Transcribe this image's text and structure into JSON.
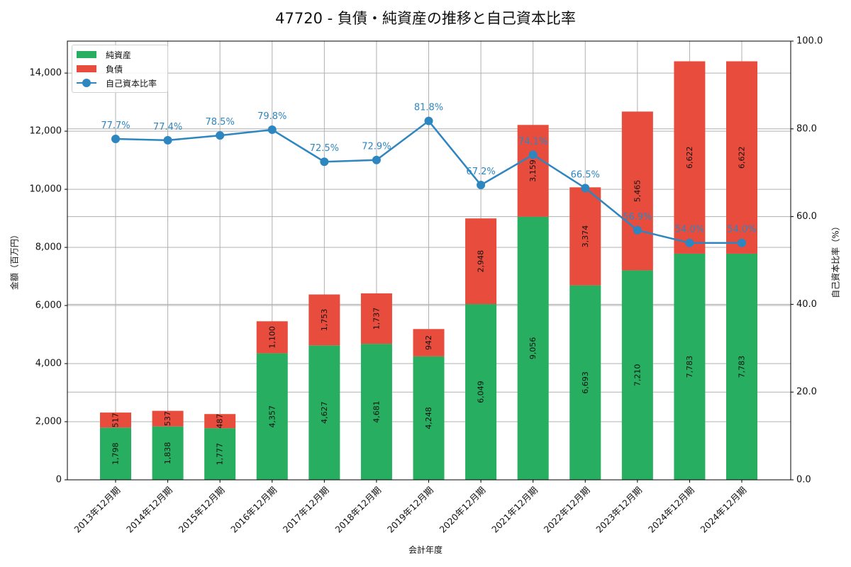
{
  "title": "47720 - 負債・純資産の推移と自己資本比率",
  "axes": {
    "xlabel": "会計年度",
    "ylabel_left": "金額（百万円）",
    "ylabel_right": "自己資本比率（%）",
    "left_ticks": [
      "0",
      "2,000",
      "4,000",
      "6,000",
      "8,000",
      "10,000",
      "12,000",
      "14,000"
    ],
    "right_ticks": [
      "0.0",
      "20.0",
      "40.0",
      "60.0",
      "80.0",
      "100.0"
    ]
  },
  "legend": {
    "items": [
      {
        "label": "純資産",
        "color": "#27ae60",
        "kind": "bar"
      },
      {
        "label": "負債",
        "color": "#e74c3c",
        "kind": "bar"
      },
      {
        "label": "自己資本比率",
        "color": "#2e86c1",
        "kind": "line-marker"
      }
    ]
  },
  "colors": {
    "net_assets": "#27ae60",
    "liabilities": "#e74c3c",
    "equity_ratio": "#2e86c1",
    "grid": "#b0b0b0"
  },
  "chart_data": {
    "type": "bar",
    "stacked": true,
    "title": "47720 - 負債・純資産の推移と自己資本比率",
    "xlabel": "会計年度",
    "ylabel": "金額（百万円）",
    "ylabel_right": "自己資本比率（%）",
    "ylim": [
      0,
      15100
    ],
    "ylim_right": [
      0,
      100
    ],
    "grid": true,
    "legend_position": "upper left",
    "categories": [
      "2013年12月期",
      "2014年12月期",
      "2015年12月期",
      "2016年12月期",
      "2017年12月期",
      "2018年12月期",
      "2019年12月期",
      "2020年12月期",
      "2021年12月期",
      "2022年12月期",
      "2023年12月期",
      "2024年12月期",
      "2024年12月期"
    ],
    "series": [
      {
        "name": "純資産",
        "type": "bar",
        "axis": "left",
        "values": [
          1798,
          1838,
          1777,
          4357,
          4627,
          4681,
          4248,
          6049,
          9056,
          6693,
          7210,
          7783,
          7783
        ],
        "labels": [
          "1,798",
          "1,838",
          "1,777",
          "4,357",
          "4,627",
          "4,681",
          "4,248",
          "6,049",
          "9,056",
          "6,693",
          "7,210",
          "7,783",
          "7,783"
        ]
      },
      {
        "name": "負債",
        "type": "bar",
        "axis": "left",
        "values": [
          517,
          537,
          487,
          1100,
          1753,
          1737,
          942,
          2948,
          3159,
          3374,
          5465,
          6622,
          6622
        ],
        "labels": [
          "517",
          "537",
          "487",
          "1,100",
          "1,753",
          "1,737",
          "942",
          "2,948",
          "3,159",
          "3,374",
          "5,465",
          "6,622",
          "6,622"
        ]
      },
      {
        "name": "自己資本比率",
        "type": "line",
        "axis": "right",
        "values": [
          77.7,
          77.4,
          78.5,
          79.8,
          72.5,
          72.9,
          81.8,
          67.2,
          74.1,
          66.5,
          56.9,
          54.0,
          54.0
        ],
        "labels": [
          "77.7%",
          "77.4%",
          "78.5%",
          "79.8%",
          "72.5%",
          "72.9%",
          "81.8%",
          "67.2%",
          "74.1%",
          "66.5%",
          "56.9%",
          "54.0%",
          "54.0%"
        ]
      }
    ]
  }
}
